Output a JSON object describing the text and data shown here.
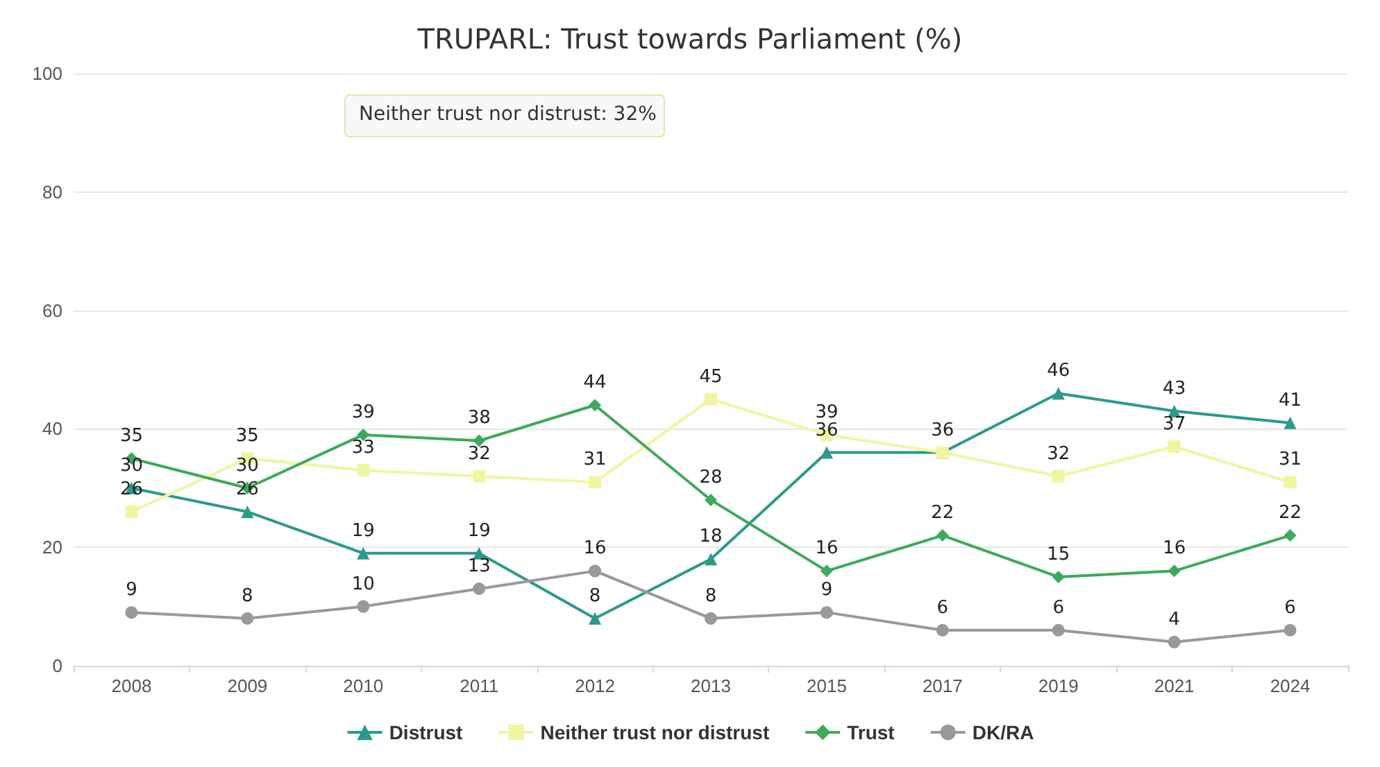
{
  "chart_data": {
    "type": "line",
    "title": "TRUPARL: Trust towards Parliament (%)",
    "categories": [
      "2008",
      "2009",
      "2010",
      "2011",
      "2012",
      "2013",
      "2015",
      "2017",
      "2019",
      "2021",
      "2024"
    ],
    "series": [
      {
        "name": "Distrust",
        "color": "#2a9a8c",
        "marker": "triangle",
        "values": [
          30,
          26,
          19,
          19,
          8,
          18,
          36,
          36,
          46,
          43,
          41
        ]
      },
      {
        "name": "Neither trust nor distrust",
        "color": "#f2f5a0",
        "marker": "square",
        "values": [
          26,
          35,
          33,
          32,
          31,
          45,
          39,
          36,
          32,
          37,
          31
        ],
        "value_labels": [
          "26",
          "35",
          "33",
          "32",
          "31",
          "45",
          "39",
          null,
          "32",
          "37",
          "31"
        ]
      },
      {
        "name": "Trust",
        "color": "#3caa5a",
        "marker": "diamond",
        "values": [
          35,
          30,
          39,
          38,
          44,
          28,
          16,
          22,
          15,
          16,
          22
        ]
      },
      {
        "name": "DK/RA",
        "color": "#999999",
        "marker": "circle",
        "values": [
          9,
          8,
          10,
          13,
          16,
          8,
          9,
          6,
          6,
          4,
          6
        ]
      }
    ],
    "annotations": [
      "Neither trust nor distrust: 32%"
    ],
    "ylim": [
      0,
      100
    ],
    "yticks": [
      0,
      20,
      40,
      60,
      80,
      100
    ],
    "grid": "y",
    "legend": "bottom",
    "data_labels": true
  }
}
